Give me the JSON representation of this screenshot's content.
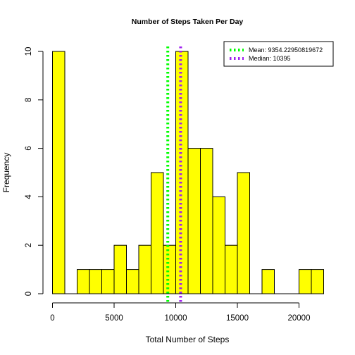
{
  "chart_data": {
    "type": "bar",
    "title": "Number of Steps Taken Per Day",
    "xlabel": "Total Number of Steps",
    "ylabel": "Frequency",
    "bin_width": 1000,
    "bins": [
      {
        "start": 0,
        "end": 1000,
        "count": 10
      },
      {
        "start": 1000,
        "end": 2000,
        "count": 0
      },
      {
        "start": 2000,
        "end": 3000,
        "count": 1
      },
      {
        "start": 3000,
        "end": 4000,
        "count": 1
      },
      {
        "start": 4000,
        "end": 5000,
        "count": 1
      },
      {
        "start": 5000,
        "end": 6000,
        "count": 2
      },
      {
        "start": 6000,
        "end": 7000,
        "count": 1
      },
      {
        "start": 7000,
        "end": 8000,
        "count": 2
      },
      {
        "start": 8000,
        "end": 9000,
        "count": 5
      },
      {
        "start": 9000,
        "end": 10000,
        "count": 2
      },
      {
        "start": 10000,
        "end": 11000,
        "count": 10
      },
      {
        "start": 11000,
        "end": 12000,
        "count": 6
      },
      {
        "start": 12000,
        "end": 13000,
        "count": 6
      },
      {
        "start": 13000,
        "end": 14000,
        "count": 4
      },
      {
        "start": 14000,
        "end": 15000,
        "count": 2
      },
      {
        "start": 15000,
        "end": 16000,
        "count": 5
      },
      {
        "start": 16000,
        "end": 17000,
        "count": 0
      },
      {
        "start": 17000,
        "end": 18000,
        "count": 1
      },
      {
        "start": 18000,
        "end": 19000,
        "count": 0
      },
      {
        "start": 19000,
        "end": 20000,
        "count": 0
      },
      {
        "start": 20000,
        "end": 21000,
        "count": 1
      },
      {
        "start": 21000,
        "end": 22000,
        "count": 1
      }
    ],
    "xlim": [
      0,
      22000
    ],
    "ylim": [
      0,
      10
    ],
    "x_ticks": [
      0,
      5000,
      10000,
      15000,
      20000
    ],
    "x_tick_labels": [
      "0",
      "5000",
      "10000",
      "15000",
      "20000"
    ],
    "y_ticks": [
      0,
      2,
      4,
      6,
      8,
      10
    ],
    "y_tick_labels": [
      "0",
      "2",
      "4",
      "6",
      "8",
      "10"
    ],
    "bar_color": "#ffff00",
    "bar_border_color": "#000000",
    "grid": false,
    "legend_position": "top-right",
    "reference_lines": [
      {
        "name": "Mean",
        "value": 9354.2295081967,
        "label": "Mean:  9354.22950819672",
        "color": "#00ff00",
        "style": "dotted"
      },
      {
        "name": "Median",
        "value": 10395,
        "label": "Median:  10395",
        "color": "#a020f0",
        "style": "dotted"
      }
    ]
  }
}
